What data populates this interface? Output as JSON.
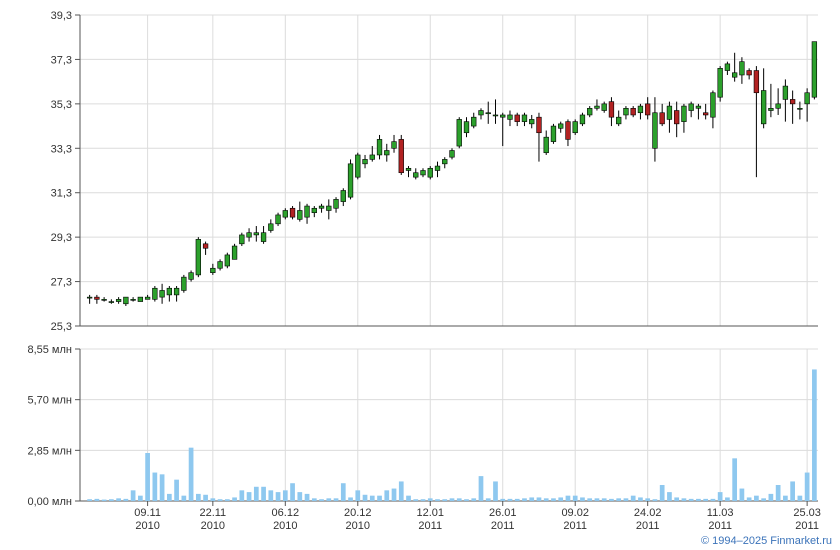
{
  "chart_data": [
    {
      "type": "candlestick",
      "ylim": [
        25.3,
        39.3
      ],
      "y_ticks": [
        "25,3",
        "27,3",
        "29,3",
        "31,3",
        "33,3",
        "35,3",
        "37,3",
        "39,3"
      ],
      "x_ticks": [
        {
          "day": "09.11",
          "year": "2010"
        },
        {
          "day": "22.11",
          "year": "2010"
        },
        {
          "day": "06.12",
          "year": "2010"
        },
        {
          "day": "20.12",
          "year": "2010"
        },
        {
          "day": "12.01",
          "year": "2011"
        },
        {
          "day": "26.01",
          "year": "2011"
        },
        {
          "day": "09.02",
          "year": "2011"
        },
        {
          "day": "24.02",
          "year": "2011"
        },
        {
          "day": "11.03",
          "year": "2011"
        },
        {
          "day": "25.03",
          "year": "2011"
        }
      ],
      "grid": true,
      "ohlc": [
        [
          26.6,
          26.7,
          26.3,
          26.6
        ],
        [
          26.6,
          26.7,
          26.3,
          26.5
        ],
        [
          26.5,
          26.6,
          26.4,
          26.5
        ],
        [
          26.4,
          26.5,
          26.3,
          26.4
        ],
        [
          26.4,
          26.6,
          26.3,
          26.5
        ],
        [
          26.3,
          26.6,
          26.2,
          26.6
        ],
        [
          26.5,
          26.6,
          26.4,
          26.5
        ],
        [
          26.4,
          26.6,
          26.4,
          26.6
        ],
        [
          26.5,
          26.7,
          26.5,
          26.6
        ],
        [
          26.5,
          27.1,
          26.4,
          27.0
        ],
        [
          26.6,
          27.2,
          26.3,
          26.9
        ],
        [
          26.7,
          27.1,
          26.4,
          27.0
        ],
        [
          26.7,
          27.1,
          26.4,
          27.0
        ],
        [
          26.9,
          27.6,
          26.8,
          27.5
        ],
        [
          27.4,
          27.8,
          27.3,
          27.7
        ],
        [
          27.6,
          29.3,
          27.5,
          29.2
        ],
        [
          29.0,
          29.1,
          28.5,
          28.8
        ],
        [
          27.7,
          28.1,
          27.6,
          27.9
        ],
        [
          27.9,
          28.3,
          27.8,
          28.2
        ],
        [
          28.0,
          28.6,
          27.9,
          28.5
        ],
        [
          28.3,
          29.0,
          28.3,
          28.9
        ],
        [
          29.0,
          29.5,
          28.9,
          29.4
        ],
        [
          29.3,
          29.7,
          29.1,
          29.5
        ],
        [
          29.4,
          29.8,
          29.1,
          29.5
        ],
        [
          29.1,
          29.8,
          29.0,
          29.5
        ],
        [
          29.6,
          30.1,
          29.5,
          29.9
        ],
        [
          29.9,
          30.4,
          29.8,
          30.3
        ],
        [
          30.2,
          30.6,
          30.1,
          30.5
        ],
        [
          30.6,
          30.7,
          30.1,
          30.2
        ],
        [
          30.1,
          30.9,
          30.0,
          30.5
        ],
        [
          30.2,
          30.8,
          29.9,
          30.7
        ],
        [
          30.4,
          30.7,
          30.2,
          30.6
        ],
        [
          30.6,
          30.8,
          30.4,
          30.7
        ],
        [
          30.5,
          31.0,
          30.1,
          30.7
        ],
        [
          30.6,
          31.1,
          30.4,
          31.0
        ],
        [
          30.9,
          31.5,
          30.7,
          31.4
        ],
        [
          31.1,
          32.8,
          31.0,
          32.6
        ],
        [
          32.0,
          33.1,
          31.9,
          33.0
        ],
        [
          32.6,
          33.0,
          32.4,
          32.8
        ],
        [
          32.8,
          33.4,
          32.7,
          33.0
        ],
        [
          33.0,
          33.9,
          32.8,
          33.7
        ],
        [
          33.0,
          33.5,
          32.7,
          33.2
        ],
        [
          33.3,
          33.9,
          33.1,
          33.6
        ],
        [
          33.7,
          33.9,
          32.1,
          32.2
        ],
        [
          32.3,
          32.5,
          32.0,
          32.4
        ],
        [
          32.0,
          32.4,
          31.9,
          32.2
        ],
        [
          32.1,
          32.4,
          32.0,
          32.3
        ],
        [
          32.0,
          32.5,
          31.9,
          32.4
        ],
        [
          32.3,
          32.7,
          32.0,
          32.5
        ],
        [
          32.6,
          32.9,
          32.4,
          32.8
        ],
        [
          32.9,
          33.3,
          32.8,
          33.2
        ],
        [
          33.4,
          34.7,
          33.3,
          34.6
        ],
        [
          34.0,
          34.7,
          33.8,
          34.5
        ],
        [
          34.3,
          34.9,
          34.2,
          34.7
        ],
        [
          34.8,
          35.1,
          34.6,
          35.0
        ],
        [
          34.9,
          35.4,
          34.4,
          34.9
        ],
        [
          34.8,
          35.5,
          34.4,
          34.8
        ],
        [
          34.7,
          34.9,
          33.4,
          34.8
        ],
        [
          34.6,
          35.0,
          34.3,
          34.8
        ],
        [
          34.8,
          34.9,
          34.3,
          34.5
        ],
        [
          34.5,
          34.9,
          34.3,
          34.8
        ],
        [
          34.4,
          34.8,
          34.2,
          34.6
        ],
        [
          34.7,
          34.9,
          32.7,
          34.0
        ],
        [
          33.1,
          34.1,
          33.0,
          33.8
        ],
        [
          33.6,
          34.4,
          33.5,
          34.3
        ],
        [
          34.2,
          34.5,
          34.0,
          34.4
        ],
        [
          34.5,
          34.6,
          33.4,
          33.7
        ],
        [
          34.0,
          34.6,
          33.9,
          34.5
        ],
        [
          34.4,
          34.9,
          34.3,
          34.8
        ],
        [
          34.8,
          35.2,
          34.7,
          35.1
        ],
        [
          35.1,
          35.5,
          35.0,
          35.2
        ],
        [
          35.0,
          35.4,
          34.9,
          35.3
        ],
        [
          35.4,
          35.6,
          34.3,
          34.7
        ],
        [
          34.4,
          35.0,
          34.3,
          34.7
        ],
        [
          34.8,
          35.2,
          34.6,
          35.1
        ],
        [
          35.1,
          35.2,
          34.7,
          34.8
        ],
        [
          34.9,
          35.3,
          34.6,
          35.2
        ],
        [
          35.3,
          35.6,
          34.6,
          34.8
        ],
        [
          33.3,
          35.6,
          32.7,
          34.9
        ],
        [
          34.9,
          35.3,
          34.3,
          34.4
        ],
        [
          34.6,
          35.4,
          34.0,
          35.2
        ],
        [
          35.0,
          35.4,
          33.8,
          34.4
        ],
        [
          34.5,
          35.3,
          34.0,
          35.2
        ],
        [
          35.0,
          35.4,
          34.7,
          35.3
        ],
        [
          35.1,
          35.3,
          34.6,
          35.2
        ],
        [
          34.9,
          35.3,
          34.6,
          34.8
        ],
        [
          34.7,
          35.9,
          34.2,
          35.8
        ],
        [
          35.6,
          37.0,
          35.4,
          36.9
        ],
        [
          36.8,
          37.2,
          36.6,
          37.1
        ],
        [
          36.5,
          37.6,
          36.3,
          36.7
        ],
        [
          36.6,
          37.4,
          36.2,
          37.2
        ],
        [
          36.8,
          36.9,
          36.4,
          36.6
        ],
        [
          36.8,
          37.0,
          32.0,
          35.8
        ],
        [
          34.4,
          36.9,
          34.2,
          35.9
        ],
        [
          35.0,
          36.2,
          34.7,
          35.1
        ],
        [
          35.1,
          36.0,
          34.8,
          35.3
        ],
        [
          35.5,
          36.4,
          34.5,
          36.1
        ],
        [
          35.5,
          35.9,
          34.4,
          35.3
        ],
        [
          35.1,
          35.4,
          34.6,
          35.1
        ],
        [
          35.3,
          36.0,
          34.5,
          35.8
        ],
        [
          35.6,
          38.1,
          35.5,
          38.1
        ]
      ]
    },
    {
      "type": "bar",
      "ylim": [
        0,
        8.55
      ],
      "y_ticks": [
        "0,00 млн",
        "2,85 млн",
        "5,70 млн",
        "8,55 млн"
      ],
      "values": [
        0.1,
        0.12,
        0.08,
        0.1,
        0.15,
        0.12,
        0.6,
        0.3,
        2.7,
        1.6,
        1.5,
        0.4,
        1.2,
        0.3,
        3.0,
        0.4,
        0.35,
        0.15,
        0.1,
        0.1,
        0.2,
        0.6,
        0.5,
        0.8,
        0.8,
        0.6,
        0.5,
        0.6,
        1.0,
        0.5,
        0.4,
        0.15,
        0.1,
        0.15,
        0.15,
        1.0,
        0.2,
        0.6,
        0.35,
        0.3,
        0.3,
        0.6,
        0.7,
        1.1,
        0.3,
        0.1,
        0.1,
        0.15,
        0.1,
        0.1,
        0.15,
        0.15,
        0.1,
        0.15,
        1.4,
        0.15,
        1.1,
        0.12,
        0.12,
        0.12,
        0.15,
        0.2,
        0.2,
        0.15,
        0.15,
        0.2,
        0.3,
        0.3,
        0.2,
        0.15,
        0.15,
        0.15,
        0.12,
        0.15,
        0.15,
        0.3,
        0.2,
        0.15,
        0.1,
        0.9,
        0.5,
        0.2,
        0.15,
        0.12,
        0.12,
        0.12,
        0.12,
        0.5,
        0.2,
        2.4,
        0.7,
        0.2,
        0.3,
        0.15,
        0.4,
        0.9,
        0.3,
        1.1,
        0.3,
        1.6,
        7.4
      ]
    }
  ],
  "footer": {
    "copyright": "© 1994–2025 Finmarket.ru"
  },
  "colors": {
    "up": "#2ca02c",
    "down": "#b22222",
    "volume": "#8ec8ef",
    "grid": "#dcdcdc",
    "axis": "#555555"
  }
}
